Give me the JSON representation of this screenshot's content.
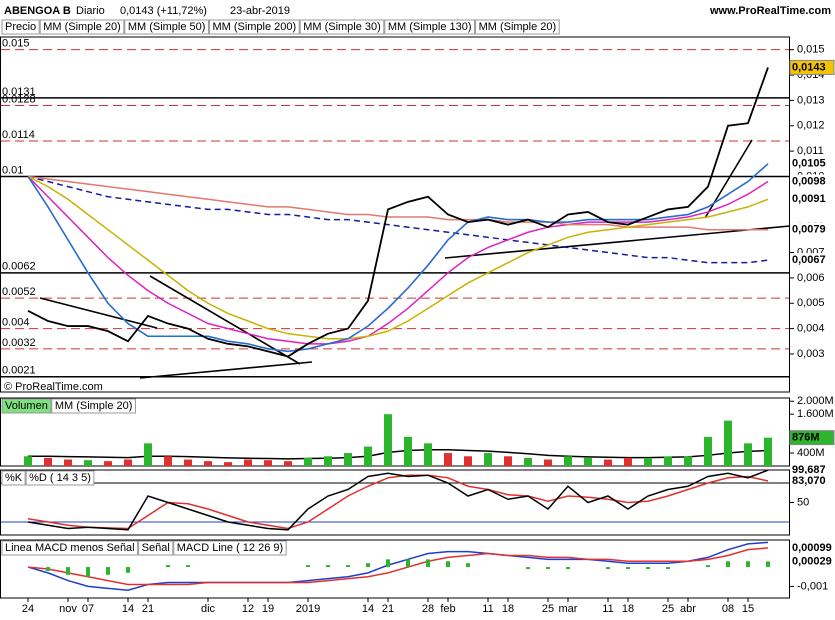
{
  "header": {
    "symbol": "ABENGOA B",
    "period": "Diario",
    "quote": "0,0143 (+11,72%)",
    "date": "23-abr-2019",
    "site": "www.ProRealTime.com"
  },
  "watermark": "© ProRealTime.com",
  "chart_data": [
    {
      "type": "line",
      "ylim": [
        0.0015,
        0.0155
      ],
      "yticks": [
        {
          "value": 0.003,
          "label": "0,003"
        },
        {
          "value": 0.004,
          "label": "0,004"
        },
        {
          "value": 0.005,
          "label": "0,005"
        },
        {
          "value": 0.006,
          "label": "0,006"
        },
        {
          "value": 0.007,
          "label": "0,007"
        },
        {
          "value": 0.008,
          "label": "0,008"
        },
        {
          "value": 0.009,
          "label": "0,009"
        },
        {
          "value": 0.01,
          "label": "0,010"
        },
        {
          "value": 0.011,
          "label": "0,011"
        },
        {
          "value": 0.012,
          "label": "0,012"
        },
        {
          "value": 0.013,
          "label": "0,013"
        },
        {
          "value": 0.014,
          "label": "0,014"
        },
        {
          "value": 0.015,
          "label": "0,015"
        }
      ],
      "levels": [
        {
          "value": 0.015,
          "style": "dashed"
        },
        {
          "value": 0.0131,
          "style": "solid"
        },
        {
          "value": 0.0128,
          "style": "dashed"
        },
        {
          "value": 0.0114,
          "style": "dashed"
        },
        {
          "value": 0.01,
          "style": "solid"
        },
        {
          "value": 0.0062,
          "style": "solid"
        },
        {
          "value": 0.0052,
          "style": "dashed"
        },
        {
          "value": 0.004,
          "style": "dashed"
        },
        {
          "value": 0.0032,
          "style": "dashed"
        },
        {
          "value": 0.0021,
          "style": "solid"
        }
      ],
      "series": [
        {
          "name": "Precio",
          "color": "#000000",
          "label_color": "#f5c400",
          "last_label": "0,0143",
          "values": [
            0.0047,
            0.0043,
            0.0041,
            0.0041,
            0.0039,
            0.0035,
            0.0045,
            0.0042,
            0.004,
            0.0036,
            0.0034,
            0.0033,
            0.0031,
            0.0029,
            0.0034,
            0.0038,
            0.004,
            0.0051,
            0.0087,
            0.009,
            0.0092,
            0.0085,
            0.0082,
            0.0083,
            0.0081,
            0.0083,
            0.008,
            0.0085,
            0.0086,
            0.0082,
            0.0081,
            0.0084,
            0.0087,
            0.0088,
            0.0096,
            0.012,
            0.0121,
            0.0143
          ]
        },
        {
          "name": "MM (Simple 20)",
          "color": "#1e6fd9",
          "last_label": "0,0105",
          "values": [
            0.01,
            0.0088,
            0.0075,
            0.0062,
            0.005,
            0.0042,
            0.0037,
            0.0037,
            0.0037,
            0.0037,
            0.0035,
            0.0034,
            0.0032,
            0.0031,
            0.0032,
            0.0034,
            0.0036,
            0.0041,
            0.0048,
            0.0056,
            0.0065,
            0.0075,
            0.0082,
            0.0084,
            0.0083,
            0.0083,
            0.0082,
            0.0082,
            0.0083,
            0.0083,
            0.0083,
            0.0083,
            0.0084,
            0.0085,
            0.0088,
            0.0093,
            0.0098,
            0.0105
          ]
        },
        {
          "name": "MM (Simple 50)",
          "color": "#c8b400",
          "last_label": "0,0091",
          "values": [
            0.01,
            0.0096,
            0.0091,
            0.0085,
            0.0079,
            0.0073,
            0.0067,
            0.0061,
            0.0055,
            0.005,
            0.0046,
            0.0043,
            0.004,
            0.0038,
            0.0037,
            0.0036,
            0.0036,
            0.0037,
            0.0039,
            0.0043,
            0.0048,
            0.0053,
            0.0058,
            0.0062,
            0.0066,
            0.007,
            0.0073,
            0.0076,
            0.0078,
            0.0079,
            0.008,
            0.0081,
            0.0082,
            0.0083,
            0.0084,
            0.0086,
            0.0088,
            0.0091
          ]
        },
        {
          "name": "MM (Simple 200)",
          "color": "#e07a6e",
          "last_label": "0,0079",
          "values": [
            0.01,
            0.0099,
            0.0098,
            0.0097,
            0.0096,
            0.0095,
            0.0094,
            0.0093,
            0.0092,
            0.0091,
            0.009,
            0.0089,
            0.0088,
            0.0088,
            0.0087,
            0.0086,
            0.0085,
            0.0085,
            0.0084,
            0.0084,
            0.0084,
            0.0083,
            0.0083,
            0.0083,
            0.0082,
            0.0082,
            0.0082,
            0.0081,
            0.0081,
            0.0081,
            0.008,
            0.008,
            0.008,
            0.008,
            0.0079,
            0.0079,
            0.0079,
            0.0079
          ]
        },
        {
          "name": "MM (Simple 30)",
          "color": "#e020c0",
          "last_label": "0,0098",
          "values": [
            0.01,
            0.0092,
            0.0084,
            0.0076,
            0.0068,
            0.0061,
            0.0055,
            0.005,
            0.0046,
            0.0042,
            0.004,
            0.0038,
            0.0036,
            0.0035,
            0.0034,
            0.0034,
            0.0035,
            0.0037,
            0.0042,
            0.0048,
            0.0055,
            0.0062,
            0.0068,
            0.0072,
            0.0075,
            0.0078,
            0.008,
            0.0081,
            0.0082,
            0.0082,
            0.0082,
            0.0082,
            0.0083,
            0.0084,
            0.0086,
            0.0089,
            0.0093,
            0.0098
          ]
        },
        {
          "name": "MM (Simple 130)",
          "color": "#1a1a9c",
          "dashed": true,
          "last_label": "0,0067",
          "values": [
            0.01,
            0.0098,
            0.0096,
            0.0094,
            0.0092,
            0.0091,
            0.009,
            0.0089,
            0.0088,
            0.0087,
            0.0087,
            0.0086,
            0.0085,
            0.0085,
            0.0084,
            0.0083,
            0.0083,
            0.0082,
            0.0081,
            0.008,
            0.0079,
            0.0078,
            0.0077,
            0.0076,
            0.0075,
            0.0074,
            0.0073,
            0.0072,
            0.0071,
            0.007,
            0.0069,
            0.0068,
            0.0068,
            0.0067,
            0.0066,
            0.0066,
            0.0066,
            0.0067
          ]
        },
        {
          "name": "MM (Simple 20)",
          "color": "#e07a6e",
          "last_label": "0,0105",
          "values": [
            0.01,
            0.0088,
            0.0075,
            0.0062,
            0.005,
            0.0042,
            0.0037,
            0.0037,
            0.0037,
            0.0037,
            0.0035,
            0.0034,
            0.0032,
            0.0031,
            0.0032,
            0.0034,
            0.0036,
            0.0041,
            0.0048,
            0.0056,
            0.0065,
            0.0075,
            0.0082,
            0.0084,
            0.0083,
            0.0083,
            0.0082,
            0.0082,
            0.0083,
            0.0083,
            0.0083,
            0.0083,
            0.0084,
            0.0085,
            0.0088,
            0.0093,
            0.0098,
            0.0105
          ]
        }
      ]
    },
    {
      "type": "bar",
      "ylim": [
        0,
        2100
      ],
      "yticks": [
        {
          "value": 400,
          "label": "400M"
        },
        {
          "value": 1600,
          "label": "1.600M"
        },
        {
          "value": 2000,
          "label": "2.000M"
        }
      ],
      "down_color": "#e03030",
      "series": [
        {
          "name": "Volumen",
          "type": "bar",
          "color": "#2db52d",
          "label_color": "#2db52d",
          "last_label": "876M",
          "values": [
            300,
            250,
            200,
            180,
            150,
            200,
            700,
            300,
            200,
            150,
            120,
            200,
            180,
            150,
            250,
            300,
            400,
            600,
            1600,
            900,
            700,
            400,
            300,
            400,
            300,
            250,
            200,
            300,
            250,
            200,
            250,
            250,
            300,
            300,
            900,
            1400,
            700,
            876
          ]
        },
        {
          "name": "MM (Simple 20)",
          "color": "#000000",
          "values": [
            300,
            300,
            290,
            280,
            270,
            260,
            300,
            300,
            290,
            270,
            250,
            240,
            230,
            220,
            230,
            240,
            260,
            300,
            420,
            480,
            500,
            500,
            480,
            460,
            420,
            380,
            330,
            300,
            280,
            270,
            260,
            260,
            270,
            280,
            330,
            400,
            450,
            480
          ]
        }
      ]
    },
    {
      "type": "line",
      "ylim": [
        0,
        100
      ],
      "yticks": [
        50
      ],
      "levels": [
        20,
        80
      ],
      "series": [
        {
          "name": "%K",
          "color": "#000000",
          "last_label": "99,687",
          "values": [
            20,
            15,
            10,
            12,
            10,
            8,
            60,
            50,
            40,
            30,
            20,
            15,
            10,
            8,
            40,
            60,
            70,
            90,
            95,
            90,
            92,
            80,
            60,
            70,
            55,
            60,
            40,
            75,
            50,
            60,
            40,
            60,
            70,
            75,
            90,
            95,
            88,
            99.687
          ]
        },
        {
          "name": "%D ( 14 3 5)",
          "color": "#e03030",
          "last_label": "83,070",
          "values": [
            25,
            20,
            15,
            12,
            11,
            10,
            30,
            50,
            48,
            40,
            30,
            20,
            15,
            10,
            20,
            40,
            60,
            75,
            88,
            92,
            92,
            88,
            75,
            70,
            62,
            60,
            52,
            60,
            58,
            55,
            50,
            52,
            60,
            70,
            80,
            88,
            90,
            83.07
          ]
        }
      ]
    },
    {
      "type": "line",
      "ylim": [
        -0.0016,
        0.0014
      ],
      "yticks": [
        {
          "value": -0.001,
          "label": "-0,001"
        }
      ],
      "categories": [
        "24",
        null,
        "nov",
        "07",
        null,
        "14",
        "21",
        null,
        null,
        "dic",
        null,
        "12",
        "19",
        null,
        "2019",
        null,
        null,
        "14",
        "21",
        null,
        "28",
        "feb",
        null,
        "11",
        "18",
        null,
        "25",
        "mar",
        null,
        "11",
        "18",
        null,
        "25",
        "abr",
        null,
        "08",
        "15",
        null
      ],
      "series": [
        {
          "name": "Linea MACD menos Señal",
          "type": "bar",
          "color": "#2db52d",
          "last_label": "0,00029",
          "values": [
            0,
            -0.0002,
            -0.0004,
            -0.0005,
            -0.0004,
            -0.0003,
            0,
            0.0001,
            0.0001,
            0,
            0,
            0,
            0,
            0,
            0.0001,
            0.0001,
            0.0001,
            0.0002,
            0.0004,
            0.0004,
            0.0004,
            0.0003,
            0.0002,
            0,
            0,
            -0.0001,
            -0.0001,
            -0.0001,
            0,
            -0.0001,
            -0.0001,
            -0.0001,
            -0.0001,
            0,
            0.0001,
            0.0003,
            0.0003,
            0.00029
          ]
        },
        {
          "name": "Señal",
          "color": "#e03030",
          "last_label": "0,00099",
          "values": [
            0,
            -0.0001,
            -0.0003,
            -0.0005,
            -0.0007,
            -0.0009,
            -0.0009,
            -0.0009,
            -0.0009,
            -0.0008,
            -0.0008,
            -0.0008,
            -0.0008,
            -0.0008,
            -0.0008,
            -0.0007,
            -0.0006,
            -0.0005,
            -0.0003,
            0,
            0.0003,
            0.0005,
            0.0006,
            0.0007,
            0.0006,
            0.0006,
            0.0005,
            0.0005,
            0.0004,
            0.0004,
            0.0003,
            0.0003,
            0.0003,
            0.0003,
            0.0004,
            0.0006,
            0.0009,
            0.00099
          ]
        },
        {
          "name": "MACD Line ( 12 26 9)",
          "color": "#1e3cd0",
          "values": [
            0,
            -0.0003,
            -0.0007,
            -0.001,
            -0.0011,
            -0.0012,
            -0.0009,
            -0.0008,
            -0.0008,
            -0.0008,
            -0.0008,
            -0.0008,
            -0.0008,
            -0.0008,
            -0.0007,
            -0.0006,
            -0.0005,
            -0.0003,
            0.0001,
            0.0004,
            0.0007,
            0.0008,
            0.0008,
            0.0007,
            0.0006,
            0.0005,
            0.0004,
            0.0004,
            0.0004,
            0.0003,
            0.0002,
            0.0002,
            0.0002,
            0.0003,
            0.0005,
            0.0009,
            0.0012,
            0.00128
          ]
        }
      ]
    }
  ]
}
